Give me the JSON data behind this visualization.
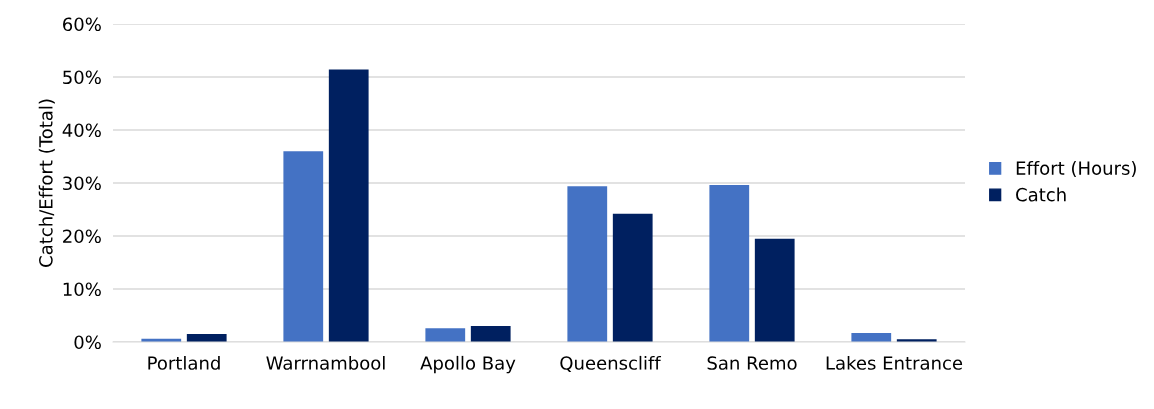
{
  "chart_data": {
    "type": "bar",
    "ylabel": "Catch/Effort (Total)",
    "categories": [
      "Portland",
      "Warrnambool",
      "Apollo Bay",
      "Queenscliff",
      "San Remo",
      "Lakes Entrance"
    ],
    "series": [
      {
        "name": "Effort (Hours)",
        "color": "#4472c4",
        "values": [
          0.6,
          36.0,
          2.6,
          29.4,
          29.6,
          1.7
        ]
      },
      {
        "name": "Catch",
        "color": "#002060",
        "values": [
          1.5,
          51.4,
          3.0,
          24.2,
          19.5,
          0.5
        ]
      }
    ],
    "ylim": [
      0,
      60
    ],
    "yticks": [
      {
        "value": 0,
        "label": "0%"
      },
      {
        "value": 10,
        "label": "10%"
      },
      {
        "value": 20,
        "label": "20%"
      },
      {
        "value": 30,
        "label": "30%"
      },
      {
        "value": 40,
        "label": "40%"
      },
      {
        "value": 50,
        "label": "50%"
      },
      {
        "value": 60,
        "label": "60%"
      }
    ],
    "grid": "y",
    "legend": "right"
  }
}
